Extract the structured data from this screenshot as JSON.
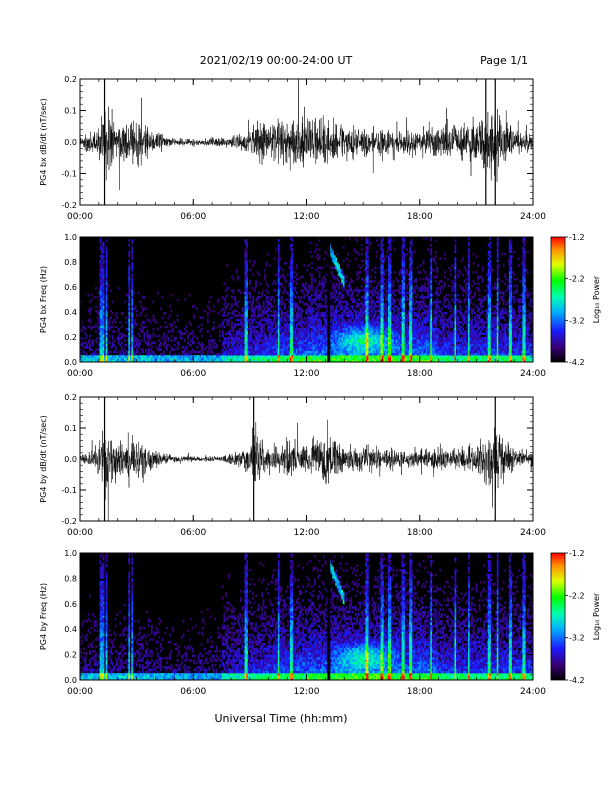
{
  "header": {
    "title": "2021/02/19  00:00-24:00 UT",
    "page": "Page 1/1"
  },
  "footer": {
    "xlabel": "Universal Time (hh:mm)"
  },
  "chart_data": [
    {
      "type": "line",
      "ylabel": "PG4 bx dB/dt (nT/sec)",
      "xlim": [
        "00:00",
        "24:00"
      ],
      "ylim": [
        -0.2,
        0.2
      ],
      "x_ticks": [
        "00:00",
        "06:00",
        "12:00",
        "18:00",
        "24:00"
      ],
      "y_ticks": [
        "-0.2",
        "-0.1",
        "0.0",
        "0.1",
        "0.2"
      ],
      "series": [
        {
          "x": [
            0,
            1,
            1.3,
            2,
            3,
            4,
            5,
            6,
            7,
            8,
            9,
            9.5,
            10,
            11,
            12,
            13,
            14,
            15,
            16,
            17,
            18,
            19,
            19.5,
            20,
            21,
            21.5,
            22,
            22.5,
            23,
            24
          ],
          "envelope": [
            0.02,
            0.09,
            0.2,
            0.1,
            0.13,
            0.06,
            0.02,
            0.02,
            0.02,
            0.03,
            0.06,
            0.12,
            0.12,
            0.12,
            0.14,
            0.12,
            0.09,
            0.08,
            0.07,
            0.06,
            0.08,
            0.09,
            0.11,
            0.09,
            0.12,
            0.2,
            0.2,
            0.13,
            0.07,
            0.05
          ]
        }
      ]
    },
    {
      "type": "heatmap",
      "ylabel": "PG4 bx Freq (Hz)",
      "xlim": [
        "00:00",
        "24:00"
      ],
      "ylim": [
        0,
        1.0
      ],
      "x_ticks": [
        "00:00",
        "06:00",
        "12:00",
        "18:00",
        "24:00"
      ],
      "y_ticks": [
        "0.0",
        "0.2",
        "0.4",
        "0.6",
        "0.8",
        "1.0"
      ],
      "colorbar": {
        "label": "Log₁₀ Power",
        "min": -4.2,
        "max": -1.2,
        "ticks": [
          "-1.2",
          "-2.2",
          "-3.2",
          "-4.2"
        ]
      }
    },
    {
      "type": "line",
      "ylabel": "PG4 by dB/dt (nT/sec)",
      "xlim": [
        "00:00",
        "24:00"
      ],
      "ylim": [
        -0.2,
        0.2
      ],
      "x_ticks": [
        "00:00",
        "06:00",
        "12:00",
        "18:00",
        "24:00"
      ],
      "y_ticks": [
        "-0.2",
        "-0.1",
        "0.0",
        "0.1",
        "0.2"
      ],
      "series": [
        {
          "x": [
            0,
            1,
            1.3,
            2,
            3,
            4,
            5,
            6,
            7,
            8,
            9,
            9.2,
            10,
            11,
            12,
            13,
            14,
            15,
            16,
            17,
            18,
            19,
            20,
            21,
            21.5,
            22,
            22.5,
            23,
            24
          ],
          "envelope": [
            0.02,
            0.08,
            0.2,
            0.1,
            0.12,
            0.05,
            0.02,
            0.015,
            0.015,
            0.03,
            0.07,
            0.2,
            0.06,
            0.09,
            0.09,
            0.15,
            0.08,
            0.07,
            0.06,
            0.05,
            0.05,
            0.07,
            0.06,
            0.09,
            0.14,
            0.2,
            0.12,
            0.05,
            0.04
          ]
        }
      ]
    },
    {
      "type": "heatmap",
      "ylabel": "PG4 by Freq (Hz)",
      "xlim": [
        "00:00",
        "24:00"
      ],
      "ylim": [
        0,
        1.0
      ],
      "x_ticks": [
        "00:00",
        "06:00",
        "12:00",
        "18:00",
        "24:00"
      ],
      "y_ticks": [
        "0.0",
        "0.2",
        "0.4",
        "0.6",
        "0.8",
        "1.0"
      ],
      "colorbar": {
        "label": "Log₁₀ Power",
        "min": -4.2,
        "max": -1.2,
        "ticks": [
          "-1.2",
          "-2.2",
          "-3.2",
          "-4.2"
        ]
      }
    }
  ]
}
